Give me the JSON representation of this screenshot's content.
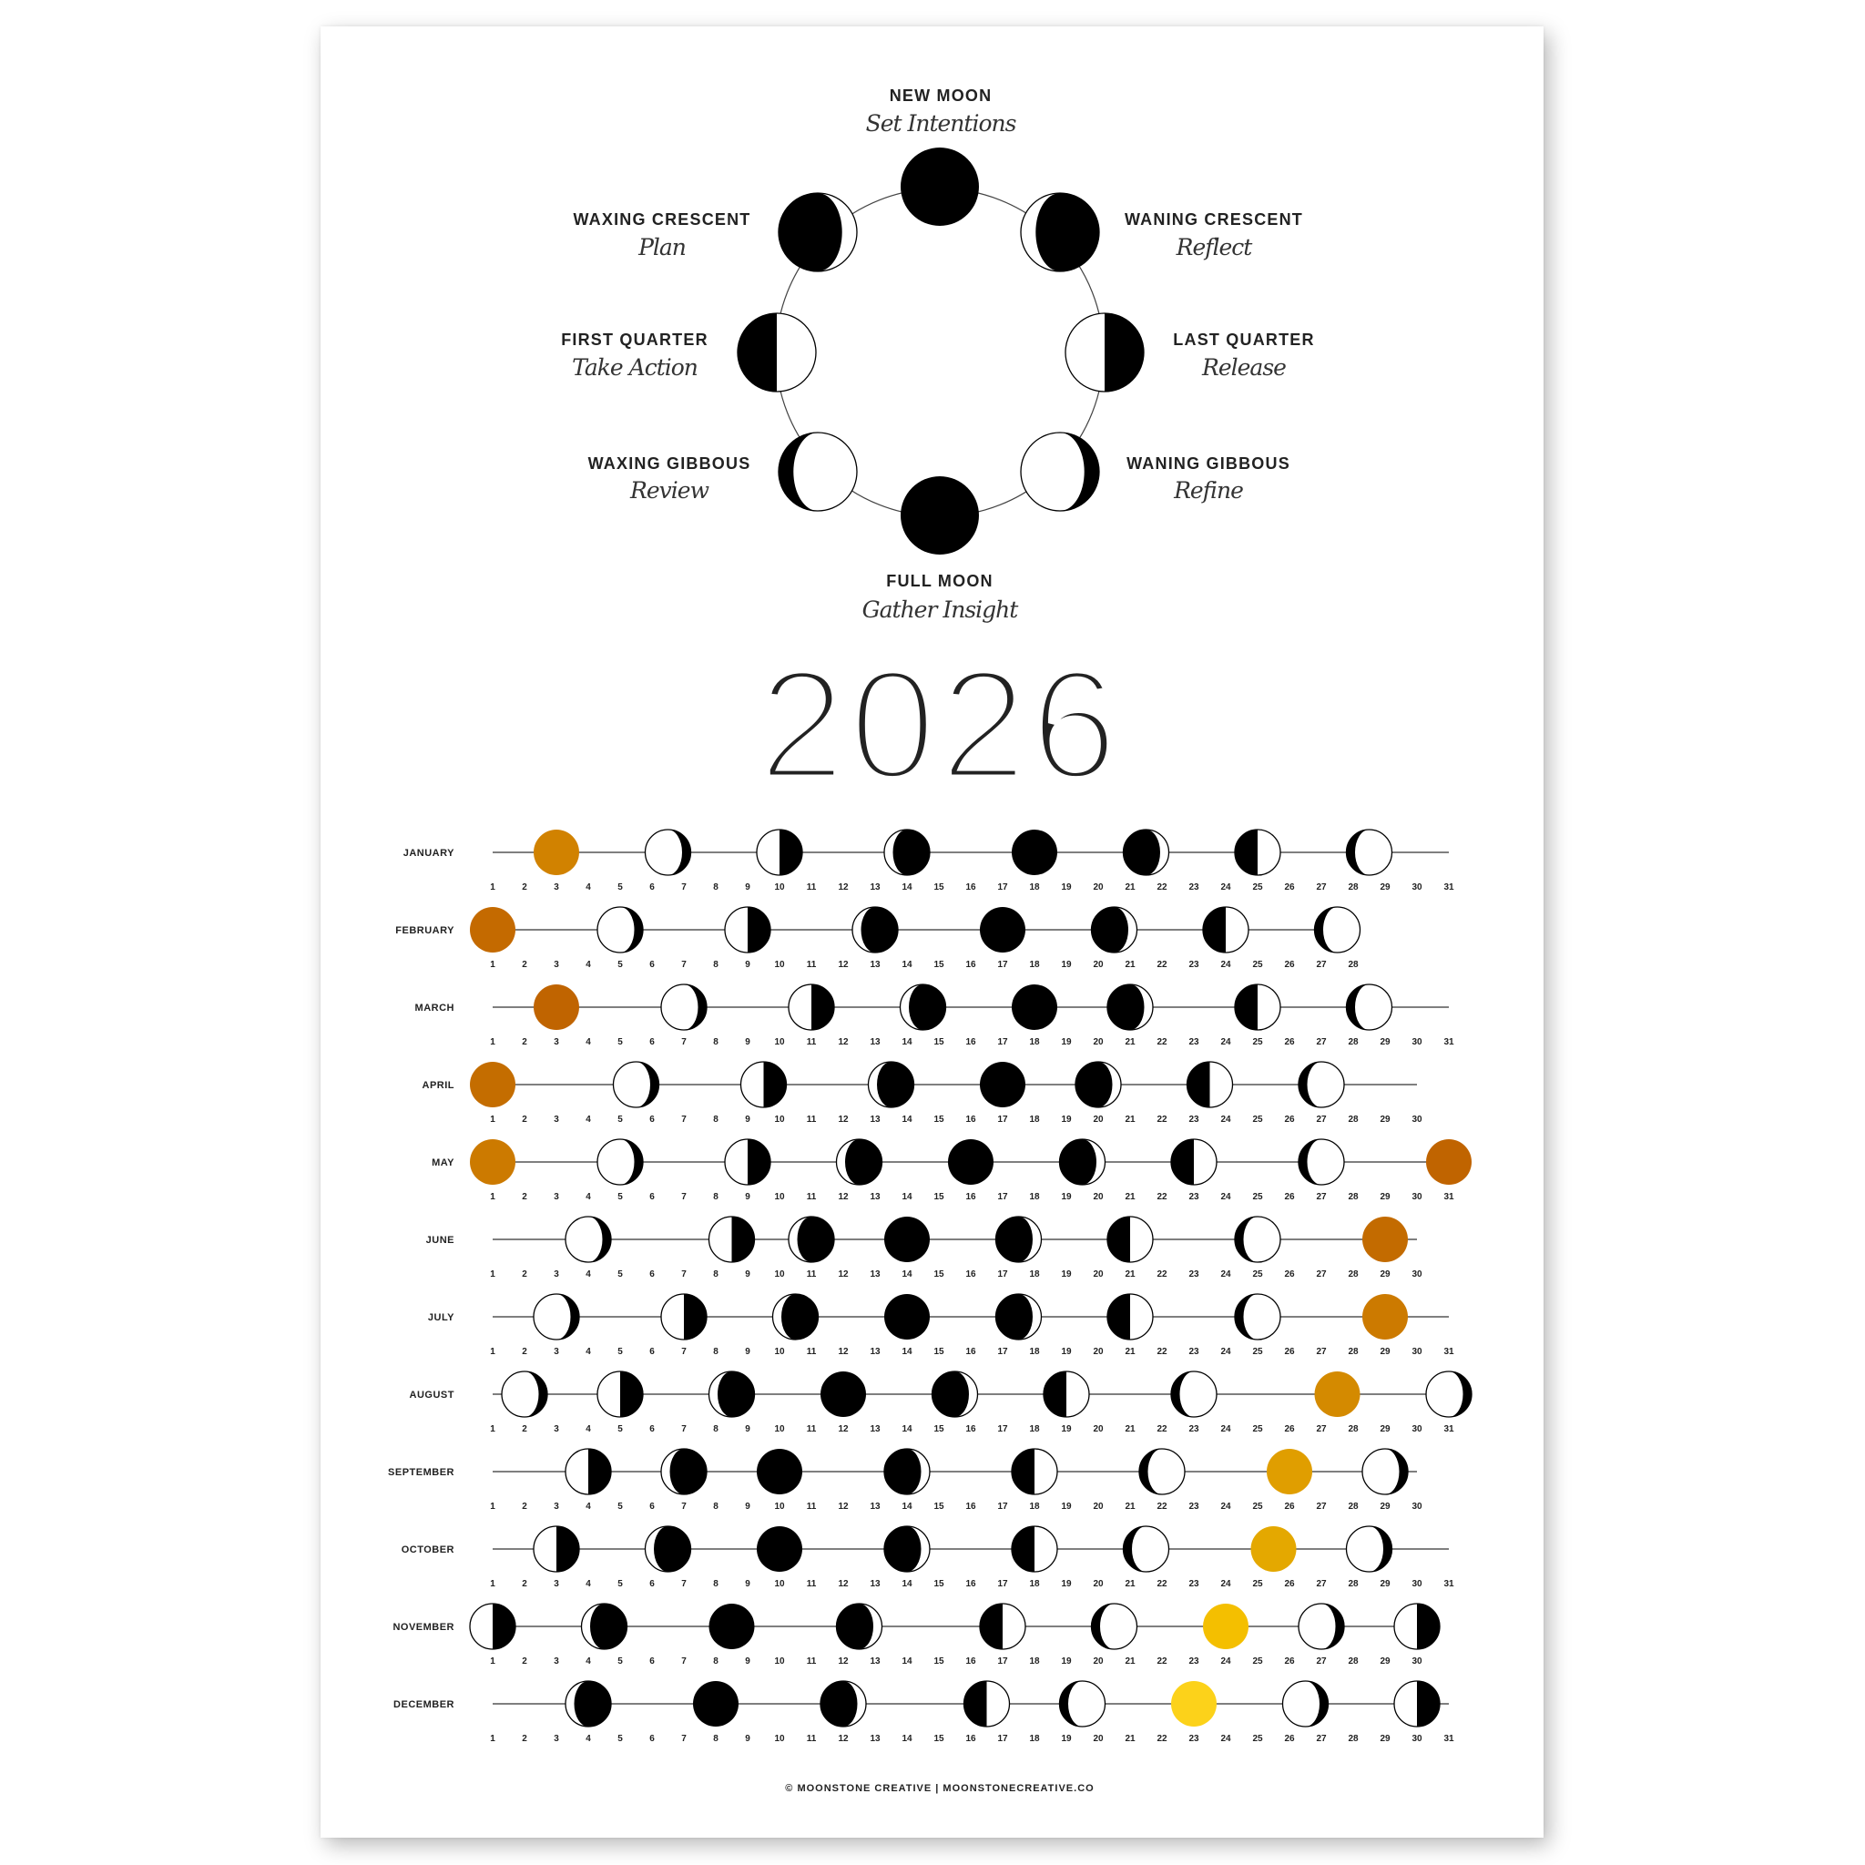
{
  "wheel": {
    "phases": [
      {
        "key": "new",
        "name": "NEW MOON",
        "meaning": "Set Intentions"
      },
      {
        "key": "waxing-crescent",
        "name": "WAXING CRESCENT",
        "meaning": "Plan"
      },
      {
        "key": "first-quarter",
        "name": "FIRST QUARTER",
        "meaning": "Take Action"
      },
      {
        "key": "waxing-gibbous",
        "name": "WAXING GIBBOUS",
        "meaning": "Review"
      },
      {
        "key": "full",
        "name": "FULL MOON",
        "meaning": "Gather Insight"
      },
      {
        "key": "waning-gibbous",
        "name": "WANING GIBBOUS",
        "meaning": "Refine"
      },
      {
        "key": "last-quarter",
        "name": "LAST QUARTER",
        "meaning": "Release"
      },
      {
        "key": "waning-crescent",
        "name": "WANING CRESCENT",
        "meaning": "Reflect"
      }
    ],
    "full_moon_color": "#f2bb00"
  },
  "year": "2026",
  "colors": {
    "shadow": "#000000",
    "lit": "#ffffff",
    "line": "#555555"
  },
  "months": [
    {
      "name": "JANUARY",
      "days": 31,
      "full_color": "#d18200",
      "moons": [
        [
          3,
          "full"
        ],
        [
          6.5,
          "waning-gibbous"
        ],
        [
          10,
          "last-quarter"
        ],
        [
          14,
          "waning-crescent"
        ],
        [
          18,
          "new"
        ],
        [
          21.5,
          "waxing-crescent"
        ],
        [
          25,
          "first-quarter"
        ],
        [
          28.5,
          "waxing-gibbous"
        ]
      ]
    },
    {
      "name": "FEBRUARY",
      "days": 28,
      "full_color": "#c46a00",
      "moons": [
        [
          1,
          "full"
        ],
        [
          5,
          "waning-gibbous"
        ],
        [
          9,
          "last-quarter"
        ],
        [
          13,
          "waning-crescent"
        ],
        [
          17,
          "new"
        ],
        [
          20.5,
          "waxing-crescent"
        ],
        [
          24,
          "first-quarter"
        ],
        [
          27.5,
          "waxing-gibbous"
        ]
      ]
    },
    {
      "name": "MARCH",
      "days": 31,
      "full_color": "#c06400",
      "moons": [
        [
          3,
          "full"
        ],
        [
          7,
          "waning-gibbous"
        ],
        [
          11,
          "last-quarter"
        ],
        [
          14.5,
          "waning-crescent"
        ],
        [
          18,
          "new"
        ],
        [
          21,
          "waxing-crescent"
        ],
        [
          25,
          "first-quarter"
        ],
        [
          28.5,
          "waxing-gibbous"
        ]
      ]
    },
    {
      "name": "APRIL",
      "days": 30,
      "full_color": "#c46d00",
      "moons": [
        [
          1,
          "full"
        ],
        [
          5.5,
          "waning-gibbous"
        ],
        [
          9.5,
          "last-quarter"
        ],
        [
          13.5,
          "waning-crescent"
        ],
        [
          17,
          "new"
        ],
        [
          20,
          "waxing-crescent"
        ],
        [
          23.5,
          "first-quarter"
        ],
        [
          27,
          "waxing-gibbous"
        ]
      ]
    },
    {
      "name": "MAY",
      "days": 31,
      "full_color": "#cc7a00",
      "moons": [
        [
          1,
          "full"
        ],
        [
          5,
          "waning-gibbous"
        ],
        [
          9,
          "last-quarter"
        ],
        [
          12.5,
          "waning-crescent"
        ],
        [
          16,
          "new"
        ],
        [
          19.5,
          "waxing-crescent"
        ],
        [
          23,
          "first-quarter"
        ],
        [
          27,
          "waxing-gibbous"
        ],
        [
          31,
          "full",
          "#c06400"
        ]
      ]
    },
    {
      "name": "JUNE",
      "days": 30,
      "full_color": "#c36b00",
      "moons": [
        [
          4,
          "waning-gibbous"
        ],
        [
          8.5,
          "last-quarter"
        ],
        [
          11,
          "waning-crescent"
        ],
        [
          14,
          "new"
        ],
        [
          17.5,
          "waxing-crescent"
        ],
        [
          21,
          "first-quarter"
        ],
        [
          25,
          "waxing-gibbous"
        ],
        [
          29,
          "full"
        ]
      ]
    },
    {
      "name": "JULY",
      "days": 31,
      "full_color": "#cc7a00",
      "moons": [
        [
          3,
          "waning-gibbous"
        ],
        [
          7,
          "last-quarter"
        ],
        [
          10.5,
          "waning-crescent"
        ],
        [
          14,
          "new"
        ],
        [
          17.5,
          "waxing-crescent"
        ],
        [
          21,
          "first-quarter"
        ],
        [
          25,
          "waxing-gibbous"
        ],
        [
          29,
          "full"
        ]
      ]
    },
    {
      "name": "AUGUST",
      "days": 31,
      "full_color": "#d48a00",
      "moons": [
        [
          2,
          "waning-gibbous"
        ],
        [
          5,
          "last-quarter"
        ],
        [
          8.5,
          "waning-crescent"
        ],
        [
          12,
          "new"
        ],
        [
          15.5,
          "waxing-crescent"
        ],
        [
          19,
          "first-quarter"
        ],
        [
          23,
          "waxing-gibbous"
        ],
        [
          27.5,
          "full"
        ],
        [
          31,
          "waning-gibbous"
        ]
      ]
    },
    {
      "name": "SEPTEMBER",
      "days": 30,
      "full_color": "#e09e00",
      "moons": [
        [
          4,
          "last-quarter"
        ],
        [
          7,
          "waning-crescent"
        ],
        [
          10,
          "new"
        ],
        [
          14,
          "waxing-crescent"
        ],
        [
          18,
          "first-quarter"
        ],
        [
          22,
          "waxing-gibbous"
        ],
        [
          26,
          "full"
        ],
        [
          29,
          "waning-gibbous"
        ]
      ]
    },
    {
      "name": "OCTOBER",
      "days": 31,
      "full_color": "#e4a800",
      "moons": [
        [
          3,
          "last-quarter"
        ],
        [
          6.5,
          "waning-crescent"
        ],
        [
          10,
          "new"
        ],
        [
          14,
          "waxing-crescent"
        ],
        [
          18,
          "first-quarter"
        ],
        [
          21.5,
          "waxing-gibbous"
        ],
        [
          25.5,
          "full"
        ],
        [
          28.5,
          "waning-gibbous"
        ]
      ]
    },
    {
      "name": "NOVEMBER",
      "days": 30,
      "full_color": "#f4bf00",
      "moons": [
        [
          1,
          "last-quarter"
        ],
        [
          4.5,
          "waning-crescent"
        ],
        [
          8.5,
          "new"
        ],
        [
          12.5,
          "waxing-crescent"
        ],
        [
          17,
          "first-quarter"
        ],
        [
          20.5,
          "waxing-gibbous"
        ],
        [
          24,
          "full"
        ],
        [
          27,
          "waning-gibbous"
        ],
        [
          30,
          "last-quarter"
        ]
      ]
    },
    {
      "name": "DECEMBER",
      "days": 31,
      "full_color": "#fcd21a",
      "moons": [
        [
          4,
          "waning-crescent"
        ],
        [
          8,
          "new"
        ],
        [
          12,
          "waxing-crescent"
        ],
        [
          16.5,
          "first-quarter"
        ],
        [
          19.5,
          "waxing-gibbous"
        ],
        [
          23,
          "full"
        ],
        [
          26.5,
          "waning-gibbous"
        ],
        [
          30,
          "last-quarter"
        ]
      ]
    }
  ],
  "footer": "© MOONSTONE CREATIVE  |  MOONSTONECREATIVE.CO"
}
